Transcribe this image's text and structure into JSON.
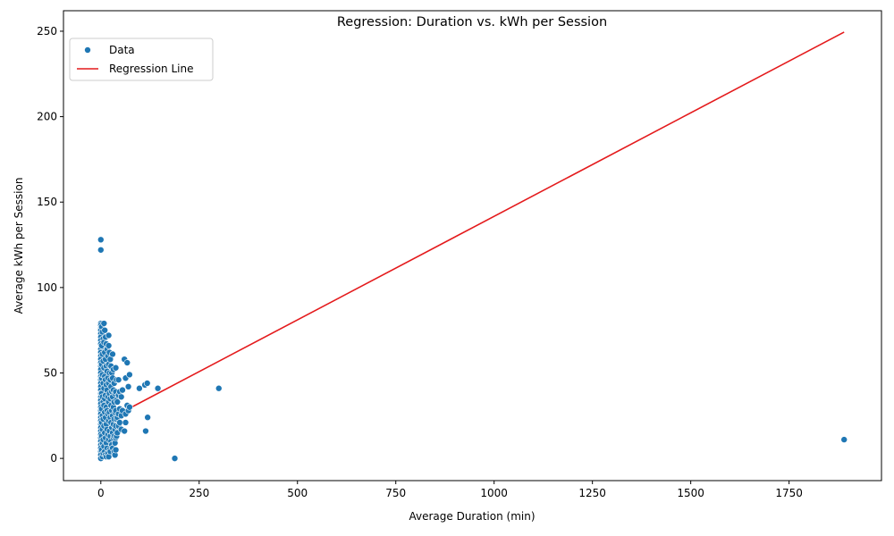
{
  "chart_data": {
    "type": "scatter",
    "title": "Regression: Duration vs. kWh per Session",
    "xlabel": "Average Duration (min)",
    "ylabel": "Average kWh per Session",
    "xlim": [
      -95,
      1985
    ],
    "ylim": [
      -13,
      262
    ],
    "xticks": [
      0,
      250,
      500,
      750,
      1000,
      1250,
      1500,
      1750
    ],
    "yticks": [
      0,
      50,
      100,
      150,
      200,
      250
    ],
    "grid": false,
    "legend": {
      "position": "top-left",
      "entries": [
        "Data",
        "Regression Line"
      ]
    },
    "colors": {
      "points": "#1f77b4",
      "regression": "#e41a1c"
    },
    "regression_line": {
      "x": [
        0,
        1890
      ],
      "y": [
        20.5,
        249.5
      ]
    },
    "points": [
      [
        0,
        128
      ],
      [
        0,
        122
      ],
      [
        0,
        79
      ],
      [
        0,
        78
      ],
      [
        0,
        76
      ],
      [
        0,
        75
      ],
      [
        0,
        73
      ],
      [
        0,
        71
      ],
      [
        0,
        69
      ],
      [
        0,
        67
      ],
      [
        0,
        64
      ],
      [
        0,
        62
      ],
      [
        0,
        60
      ],
      [
        0,
        58
      ],
      [
        0,
        56
      ],
      [
        0,
        54
      ],
      [
        0,
        52
      ],
      [
        0,
        50
      ],
      [
        0,
        48
      ],
      [
        0,
        46
      ],
      [
        0,
        44
      ],
      [
        0,
        42
      ],
      [
        0,
        40
      ],
      [
        0,
        38
      ],
      [
        0,
        36
      ],
      [
        0,
        34
      ],
      [
        0,
        32
      ],
      [
        0,
        30
      ],
      [
        0,
        28
      ],
      [
        0,
        26
      ],
      [
        0,
        24
      ],
      [
        0,
        22
      ],
      [
        0,
        20
      ],
      [
        0,
        18
      ],
      [
        0,
        16
      ],
      [
        0,
        14
      ],
      [
        0,
        12
      ],
      [
        0,
        10
      ],
      [
        0,
        8
      ],
      [
        0,
        6
      ],
      [
        0,
        4
      ],
      [
        0,
        2
      ],
      [
        0,
        0
      ],
      [
        2,
        77
      ],
      [
        2,
        66
      ],
      [
        2,
        55
      ],
      [
        2,
        47
      ],
      [
        2,
        38
      ],
      [
        2,
        29
      ],
      [
        2,
        21
      ],
      [
        2,
        13
      ],
      [
        2,
        5
      ],
      [
        4,
        74
      ],
      [
        4,
        61
      ],
      [
        4,
        49
      ],
      [
        4,
        36
      ],
      [
        4,
        25
      ],
      [
        4,
        17
      ],
      [
        4,
        9
      ],
      [
        4,
        1
      ],
      [
        6,
        70
      ],
      [
        6,
        57
      ],
      [
        6,
        44
      ],
      [
        6,
        33
      ],
      [
        6,
        23
      ],
      [
        6,
        11
      ],
      [
        6,
        3
      ],
      [
        8,
        79
      ],
      [
        8,
        68
      ],
      [
        8,
        53
      ],
      [
        8,
        41
      ],
      [
        8,
        31
      ],
      [
        8,
        19
      ],
      [
        8,
        7
      ],
      [
        10,
        75
      ],
      [
        10,
        62
      ],
      [
        10,
        48
      ],
      [
        10,
        35
      ],
      [
        10,
        27
      ],
      [
        10,
        15
      ],
      [
        10,
        4
      ],
      [
        12,
        71
      ],
      [
        12,
        58
      ],
      [
        12,
        46
      ],
      [
        12,
        37
      ],
      [
        12,
        24
      ],
      [
        12,
        12
      ],
      [
        12,
        2
      ],
      [
        14,
        67
      ],
      [
        14,
        54
      ],
      [
        14,
        43
      ],
      [
        14,
        30
      ],
      [
        14,
        20
      ],
      [
        14,
        9
      ],
      [
        14,
        1
      ],
      [
        16,
        64
      ],
      [
        16,
        51
      ],
      [
        16,
        40
      ],
      [
        16,
        28
      ],
      [
        16,
        17
      ],
      [
        16,
        6
      ],
      [
        18,
        60
      ],
      [
        18,
        47
      ],
      [
        18,
        36
      ],
      [
        18,
        26
      ],
      [
        18,
        14
      ],
      [
        18,
        3
      ],
      [
        20,
        72
      ],
      [
        20,
        66
      ],
      [
        20,
        55
      ],
      [
        20,
        44
      ],
      [
        20,
        33
      ],
      [
        20,
        22
      ],
      [
        20,
        11
      ],
      [
        20,
        1
      ],
      [
        22,
        62
      ],
      [
        22,
        50
      ],
      [
        22,
        38
      ],
      [
        22,
        27
      ],
      [
        22,
        16
      ],
      [
        22,
        5
      ],
      [
        24,
        58
      ],
      [
        24,
        46
      ],
      [
        24,
        35
      ],
      [
        24,
        24
      ],
      [
        24,
        13
      ],
      [
        24,
        4
      ],
      [
        26,
        54
      ],
      [
        26,
        42
      ],
      [
        26,
        31
      ],
      [
        26,
        21
      ],
      [
        26,
        10
      ],
      [
        28,
        50
      ],
      [
        28,
        39
      ],
      [
        28,
        28
      ],
      [
        28,
        18
      ],
      [
        28,
        8
      ],
      [
        30,
        61
      ],
      [
        30,
        47
      ],
      [
        30,
        36
      ],
      [
        30,
        25
      ],
      [
        30,
        15
      ],
      [
        30,
        6
      ],
      [
        32,
        52
      ],
      [
        32,
        40
      ],
      [
        32,
        30
      ],
      [
        32,
        20
      ],
      [
        32,
        12
      ],
      [
        34,
        44
      ],
      [
        34,
        33
      ],
      [
        34,
        23
      ],
      [
        34,
        13
      ],
      [
        34,
        4
      ],
      [
        36,
        38
      ],
      [
        36,
        27
      ],
      [
        36,
        17
      ],
      [
        36,
        9
      ],
      [
        36,
        2
      ],
      [
        38,
        53
      ],
      [
        38,
        39
      ],
      [
        38,
        28
      ],
      [
        38,
        19
      ],
      [
        38,
        12
      ],
      [
        38,
        5
      ],
      [
        40,
        46
      ],
      [
        40,
        34
      ],
      [
        40,
        23
      ],
      [
        40,
        13
      ],
      [
        42,
        33
      ],
      [
        42,
        24
      ],
      [
        42,
        15
      ],
      [
        45,
        46
      ],
      [
        45,
        37
      ],
      [
        45,
        26
      ],
      [
        45,
        19
      ],
      [
        48,
        39
      ],
      [
        48,
        29
      ],
      [
        48,
        21
      ],
      [
        52,
        36
      ],
      [
        52,
        25
      ],
      [
        52,
        17
      ],
      [
        55,
        40
      ],
      [
        55,
        28
      ],
      [
        60,
        58
      ],
      [
        60,
        16
      ],
      [
        63,
        47
      ],
      [
        63,
        26
      ],
      [
        63,
        21
      ],
      [
        67,
        56
      ],
      [
        67,
        31
      ],
      [
        70,
        42
      ],
      [
        70,
        28
      ],
      [
        73,
        49
      ],
      [
        73,
        30
      ],
      [
        98,
        41
      ],
      [
        112,
        43
      ],
      [
        118,
        44
      ],
      [
        114,
        16
      ],
      [
        119,
        24
      ],
      [
        145,
        41
      ],
      [
        188,
        0
      ],
      [
        300,
        41
      ],
      [
        1890,
        11
      ]
    ]
  }
}
